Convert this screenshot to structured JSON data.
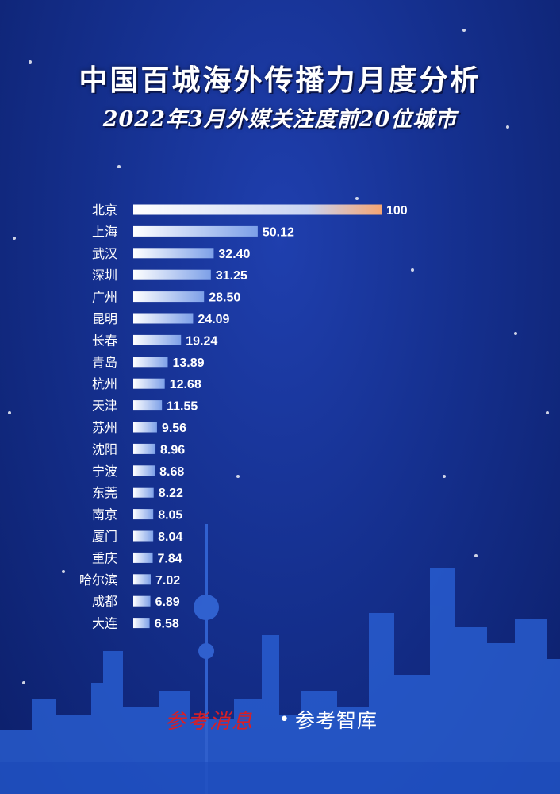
{
  "title": "中国百城海外传播力月度分析",
  "subtitle": "2022年3月外媒关注度前20位城市",
  "brand": {
    "logo_text": "参考消息",
    "separator": "•",
    "name": "参考智库",
    "logo_color": "#d81f26"
  },
  "colors": {
    "bar_start": "#ffffff",
    "bar_end": "#7da0e8",
    "top_bar_end": "#f4a574",
    "background": "#15308f",
    "text": "#ffffff"
  },
  "chart_data": {
    "type": "bar",
    "orientation": "horizontal",
    "title": "2022年3月外媒关注度前20位城市",
    "categories": [
      "北京",
      "上海",
      "武汉",
      "深圳",
      "广州",
      "昆明",
      "长春",
      "青岛",
      "杭州",
      "天津",
      "苏州",
      "沈阳",
      "宁波",
      "东莞",
      "南京",
      "厦门",
      "重庆",
      "哈尔滨",
      "成都",
      "大连"
    ],
    "values": [
      100,
      50.12,
      32.4,
      31.25,
      28.5,
      24.09,
      19.24,
      13.89,
      12.68,
      11.55,
      9.56,
      8.96,
      8.68,
      8.22,
      8.05,
      8.04,
      7.84,
      7.02,
      6.89,
      6.58
    ],
    "value_labels": [
      "100",
      "50.12",
      "32.40",
      "31.25",
      "28.50",
      "24.09",
      "19.24",
      "13.89",
      "12.68",
      "11.55",
      "9.56",
      "8.96",
      "8.68",
      "8.22",
      "8.05",
      "8.04",
      "7.84",
      "7.02",
      "6.89",
      "6.58"
    ],
    "xlim": [
      0,
      100
    ],
    "grid": false,
    "legend": "none"
  }
}
